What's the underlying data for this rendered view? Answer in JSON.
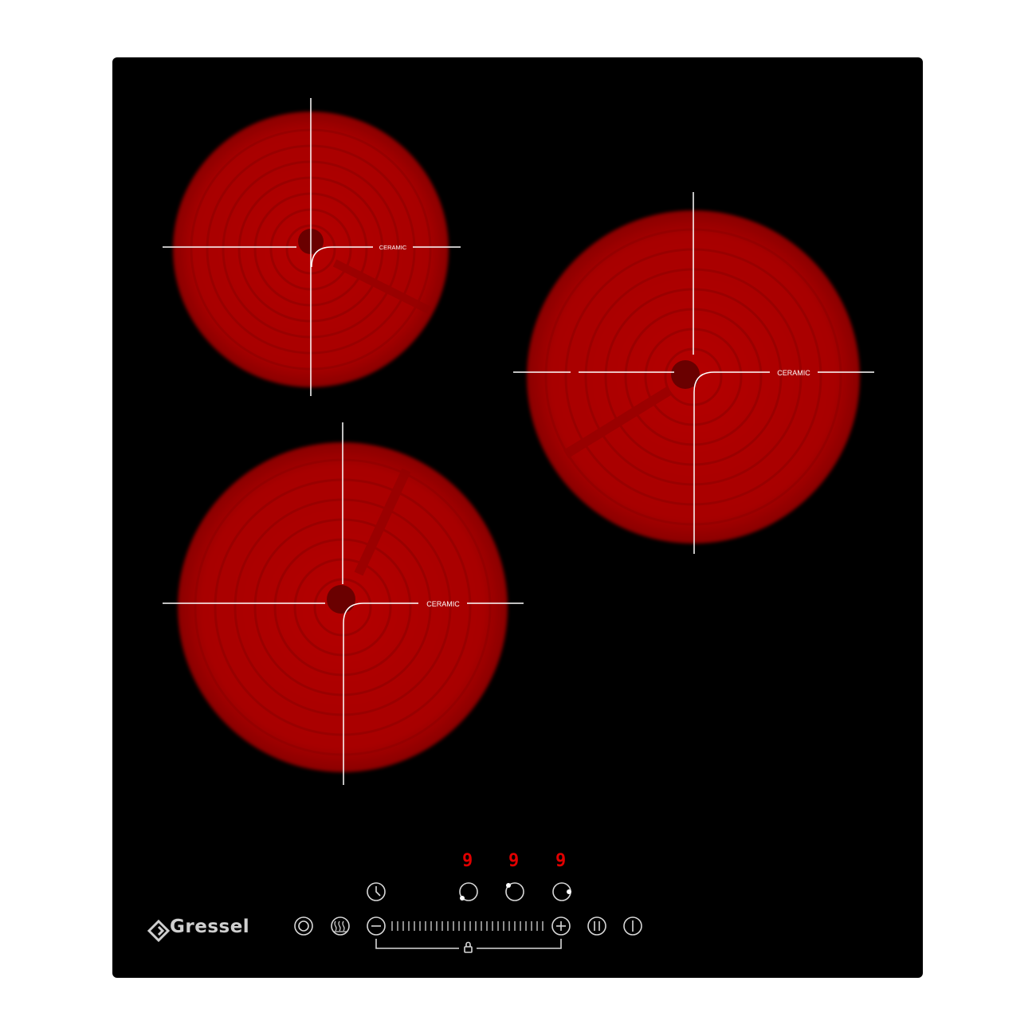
{
  "brand": {
    "name": "Gressel",
    "logo_icon": "diamond-g-icon"
  },
  "zones": [
    {
      "id": "rear-left",
      "label": "CERAMIC"
    },
    {
      "id": "right",
      "label": "CERAMIC"
    },
    {
      "id": "front-left",
      "label": "CERAMIC"
    }
  ],
  "displays": [
    "9",
    "9",
    "9"
  ],
  "controls": {
    "power_icon": "power-icon",
    "keep_warm_icon": "keep-warm-icon",
    "timer_icon": "timer-icon",
    "minus_icon": "minus-icon",
    "plus_icon": "plus-icon",
    "pause_icon": "pause-icon",
    "on_off_icon": "on-off-icon",
    "lock_icon": "lock-icon",
    "zone_select_icons": [
      "zone-front-left-icon",
      "zone-rear-left-icon",
      "zone-right-icon"
    ]
  },
  "colors": {
    "glass": "#000000",
    "heating_zone": "#c80000",
    "display": "#e00000",
    "lines": "#ffffff"
  }
}
